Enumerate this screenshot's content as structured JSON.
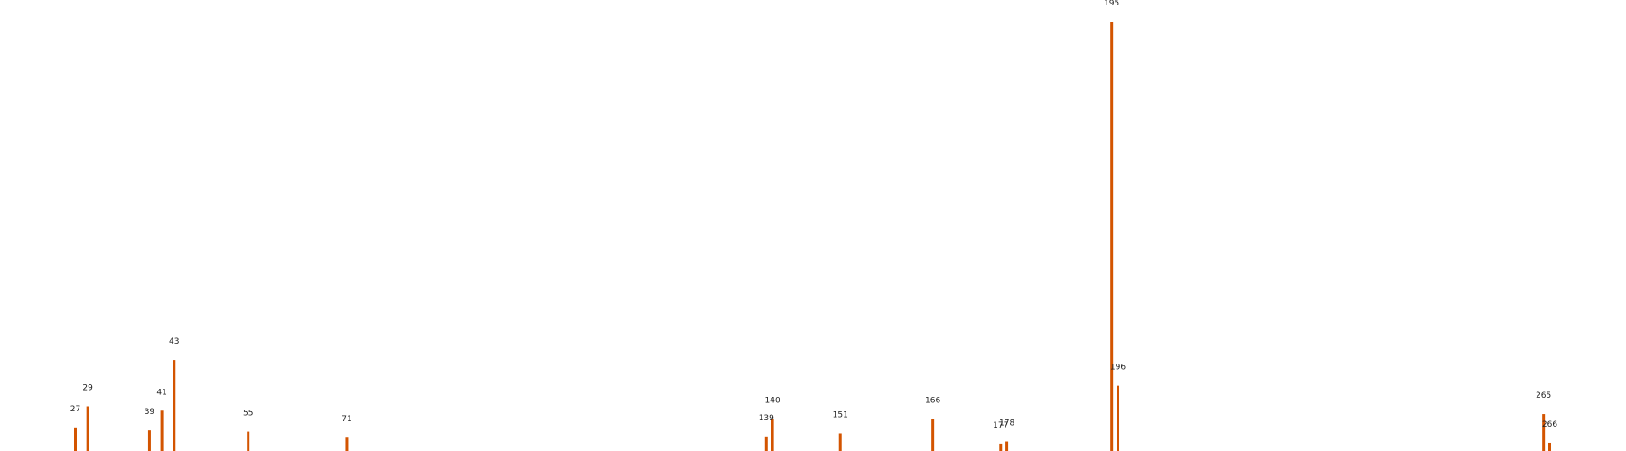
{
  "chart_data": {
    "type": "bar",
    "title": "",
    "xlabel": "",
    "ylabel": "",
    "bar_color": "#d35400",
    "axes_visible": false,
    "grid": false,
    "xlim": [
      15,
      285
    ],
    "ylim": [
      0,
      100
    ],
    "peaks": [
      {
        "x": 27,
        "y": 5.5,
        "label": "27"
      },
      {
        "x": 29,
        "y": 10.4,
        "label": "29"
      },
      {
        "x": 39,
        "y": 4.8,
        "label": "39"
      },
      {
        "x": 41,
        "y": 9.4,
        "label": "41"
      },
      {
        "x": 43,
        "y": 21.2,
        "label": "43"
      },
      {
        "x": 55,
        "y": 4.5,
        "label": "55"
      },
      {
        "x": 71,
        "y": 3.1,
        "label": "71"
      },
      {
        "x": 139,
        "y": 3.4,
        "label": "139"
      },
      {
        "x": 140,
        "y": 7.5,
        "label": "140"
      },
      {
        "x": 151,
        "y": 4.1,
        "label": "151"
      },
      {
        "x": 166,
        "y": 7.5,
        "label": "166"
      },
      {
        "x": 177,
        "y": 1.7,
        "label": "177"
      },
      {
        "x": 178,
        "y": 2.2,
        "label": "178"
      },
      {
        "x": 195,
        "y": 100,
        "label": "195"
      },
      {
        "x": 196,
        "y": 15.2,
        "label": "196"
      },
      {
        "x": 265,
        "y": 8.6,
        "label": "265"
      },
      {
        "x": 266,
        "y": 1.9,
        "label": "266"
      }
    ]
  }
}
